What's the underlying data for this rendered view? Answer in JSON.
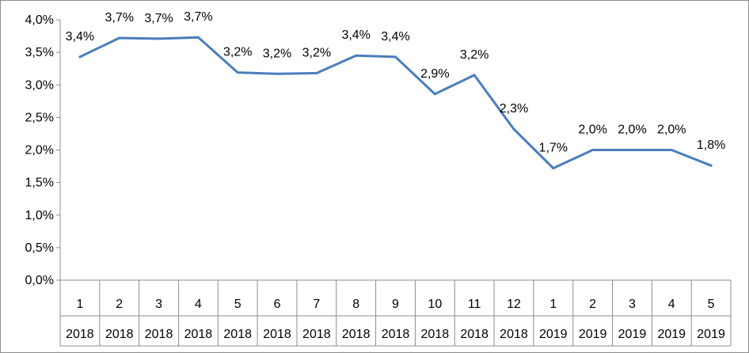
{
  "chart_data": {
    "type": "line",
    "title": "",
    "xlabel": "",
    "ylabel": "",
    "ylim": [
      0,
      4.0
    ],
    "y_ticks": [
      "0,0%",
      "0,5%",
      "1,0%",
      "1,5%",
      "2,0%",
      "2,5%",
      "3,0%",
      "3,5%",
      "4,0%"
    ],
    "grid": false,
    "legend": "none",
    "categories": [
      {
        "month": "1",
        "year": "2018"
      },
      {
        "month": "2",
        "year": "2018"
      },
      {
        "month": "3",
        "year": "2018"
      },
      {
        "month": "4",
        "year": "2018"
      },
      {
        "month": "5",
        "year": "2018"
      },
      {
        "month": "6",
        "year": "2018"
      },
      {
        "month": "7",
        "year": "2018"
      },
      {
        "month": "8",
        "year": "2018"
      },
      {
        "month": "9",
        "year": "2018"
      },
      {
        "month": "10",
        "year": "2018"
      },
      {
        "month": "11",
        "year": "2018"
      },
      {
        "month": "12",
        "year": "2018"
      },
      {
        "month": "1",
        "year": "2019"
      },
      {
        "month": "2",
        "year": "2019"
      },
      {
        "month": "3",
        "year": "2019"
      },
      {
        "month": "4",
        "year": "2019"
      },
      {
        "month": "5",
        "year": "2019"
      }
    ],
    "series": [
      {
        "color": "#4a7ebb",
        "values": [
          3.43,
          3.72,
          3.71,
          3.73,
          3.19,
          3.17,
          3.18,
          3.45,
          3.43,
          2.86,
          3.15,
          2.32,
          1.72,
          2.0,
          2.0,
          2.0,
          1.76
        ],
        "labels": [
          "3,4%",
          "3,7%",
          "3,7%",
          "3,7%",
          "3,2%",
          "3,2%",
          "3,2%",
          "3,4%",
          "3,4%",
          "2,9%",
          "3,2%",
          "2,3%",
          "1,7%",
          "2,0%",
          "2,0%",
          "2,0%",
          "1,8%"
        ]
      }
    ]
  }
}
